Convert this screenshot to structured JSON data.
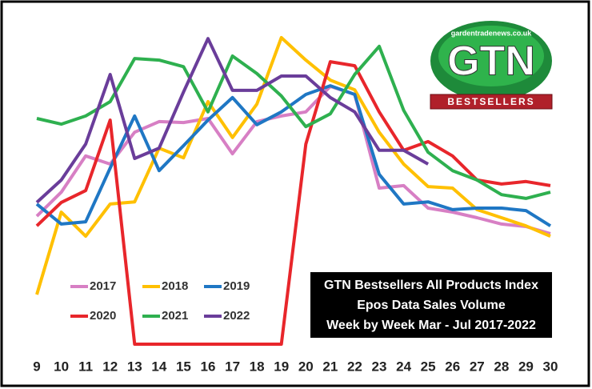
{
  "chart_data": {
    "type": "line",
    "title": [
      "GTN Bestsellers All Products Index",
      "Epos Data Sales Volume",
      "Week by Week Mar - Jul 2017-2022"
    ],
    "logo": {
      "site": "gardentradenews.co.uk",
      "name": "GTN",
      "tag": "BESTSELLERS"
    },
    "categories": [
      9,
      10,
      11,
      12,
      13,
      14,
      15,
      16,
      17,
      18,
      19,
      20,
      21,
      22,
      23,
      24,
      25,
      26,
      27,
      28,
      29,
      30
    ],
    "ylim": [
      0,
      100
    ],
    "series": [
      {
        "name": "2017",
        "color": "#d77fc4",
        "values": [
          41,
          48.7,
          60.3,
          57.7,
          67.9,
          71.3,
          71,
          72.3,
          61,
          71.3,
          73.1,
          74.4,
          82.6,
          80,
          50,
          50.8,
          43.6,
          42.3,
          40.5,
          38.5,
          37.7,
          35.4
        ]
      },
      {
        "name": "2018",
        "color": "#ffc000",
        "values": [
          15.9,
          42.3,
          34.6,
          44.9,
          45.6,
          62.8,
          59.7,
          77.7,
          66.2,
          76.9,
          98.2,
          91,
          84.6,
          81.5,
          67.9,
          57.7,
          50.5,
          50,
          43.1,
          40.5,
          37.9,
          34.6
        ]
      },
      {
        "name": "2019",
        "color": "#1f77c4",
        "values": [
          44.9,
          38.5,
          39.2,
          56.4,
          73.1,
          55.6,
          63.6,
          71.8,
          79,
          70.3,
          74.4,
          80,
          82.8,
          80,
          54.4,
          44.9,
          45.6,
          43.1,
          43.6,
          43.6,
          42.8,
          37.9
        ]
      },
      {
        "name": "2020",
        "color": "#e8262b",
        "values": [
          37.9,
          45.4,
          49.2,
          71.8,
          0,
          0,
          0,
          0,
          0,
          0,
          0,
          64.1,
          90.5,
          89.2,
          74.4,
          62.1,
          64.9,
          60.3,
          52.6,
          51.3,
          52.1,
          50.8
        ]
      },
      {
        "name": "2021",
        "color": "#2eb04f",
        "values": [
          72.3,
          70.5,
          73.1,
          77.7,
          91.5,
          91,
          88.9,
          74.4,
          92.3,
          86.7,
          79.5,
          69.7,
          73.8,
          86.4,
          95.4,
          74.9,
          61.5,
          55.6,
          52.6,
          47.9,
          46.7,
          48.7
        ]
      },
      {
        "name": "2022",
        "color": "#6a3d9a",
        "values": [
          45.4,
          52.6,
          64.1,
          86.4,
          59.5,
          62.8,
          80.8,
          97.9,
          81.3,
          81.3,
          85.9,
          85.9,
          79,
          74.4,
          62.1,
          62.1,
          57.7,
          null,
          null,
          null,
          null,
          null
        ]
      }
    ]
  }
}
